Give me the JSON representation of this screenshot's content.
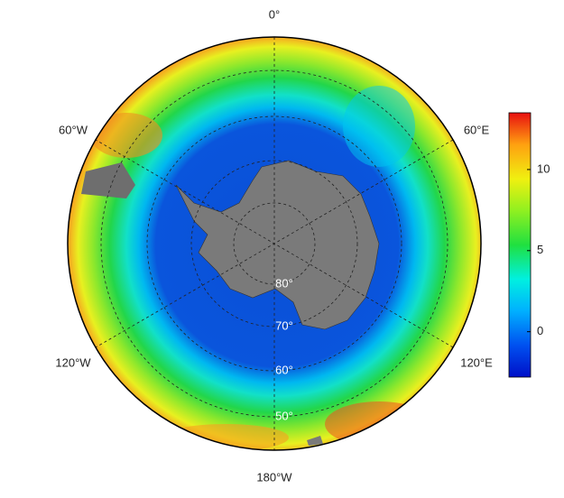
{
  "map": {
    "meridian_labels": [
      "0°",
      "60°E",
      "120°E",
      "180°W",
      "120°W",
      "60°W"
    ],
    "parallel_labels": [
      "80°",
      "70°",
      "60°",
      "50°"
    ],
    "colorbar": {
      "lim": [
        -2.8,
        13.5
      ],
      "ticks": [
        0,
        5,
        10
      ]
    }
  }
}
